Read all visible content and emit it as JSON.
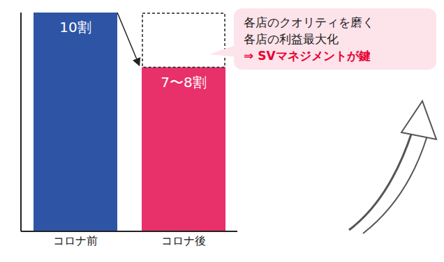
{
  "chart_data": {
    "type": "bar",
    "categories": [
      "コロナ前",
      "コロナ後"
    ],
    "values": [
      10,
      7.5
    ],
    "value_labels": [
      "10割",
      "7〜8割"
    ],
    "colors": [
      "#2e55a5",
      "#e8306a"
    ],
    "ylim": [
      0,
      10
    ],
    "yticks": [
      0,
      5,
      10
    ],
    "tick_labels": "x",
    "data_labels": true,
    "annotations": [
      "各店のクオリティを磨く",
      "各店の利益最大化",
      "⇒ SVマネジメントが鍵"
    ]
  }
}
